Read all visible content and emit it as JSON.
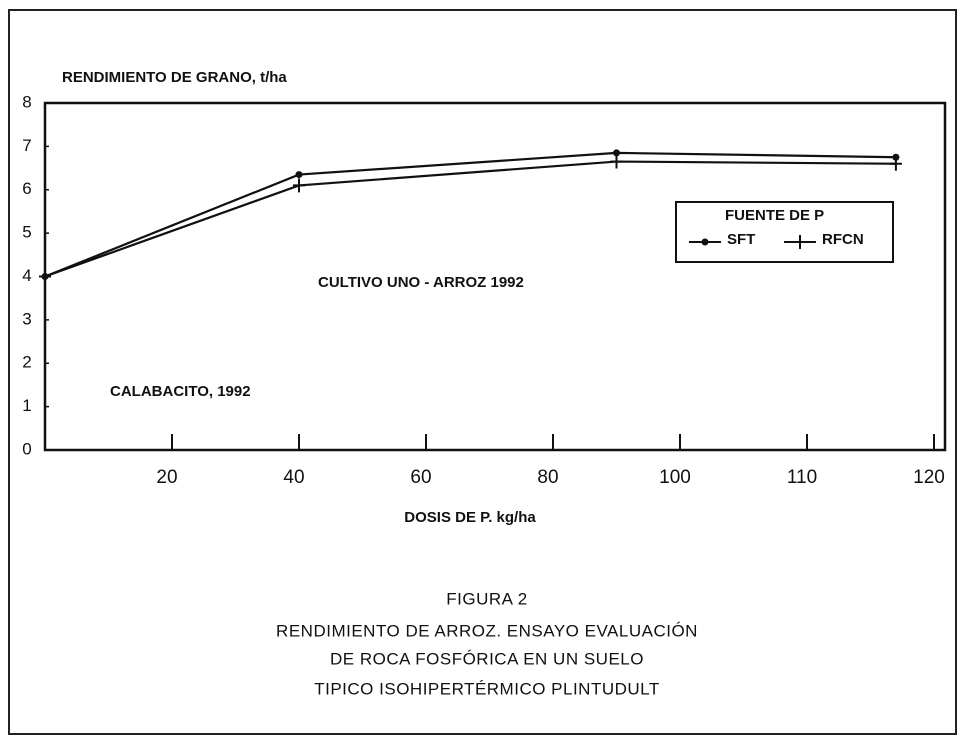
{
  "chart_data": {
    "type": "line",
    "ylabel": "RENDIMIENTO DE GRANO, t/ha",
    "xlabel": "DOSIS DE P. kg/ha",
    "annotations": [
      "CULTIVO UNO - ARROZ 1992",
      "CALABACITO,  1992"
    ],
    "legend_title": "FUENTE DE P",
    "caption": [
      "FIGURA 2",
      "RENDIMIENTO DE ARROZ.  ENSAYO EVALUACIÓN",
      "DE ROCA FOSFÓRICA EN UN SUELO",
      "TIPICO ISOHIPERTÉRMICO PLINTUDULT"
    ],
    "x": [
      0,
      40,
      90,
      117
    ],
    "series": [
      {
        "name": "SFT",
        "color": "#111111",
        "marker": "dot",
        "values": [
          4.0,
          6.35,
          6.85,
          6.75
        ]
      },
      {
        "name": "RFCN",
        "color": "#111111",
        "marker": "plus",
        "values": [
          4.0,
          6.1,
          6.65,
          6.6
        ]
      }
    ],
    "xlim": [
      0,
      120
    ],
    "xticks": [
      20,
      40,
      60,
      80,
      100,
      110,
      120
    ],
    "ylim": [
      0,
      8
    ],
    "yticks": [
      0,
      1,
      2,
      3,
      4,
      5,
      6,
      7,
      8
    ]
  }
}
